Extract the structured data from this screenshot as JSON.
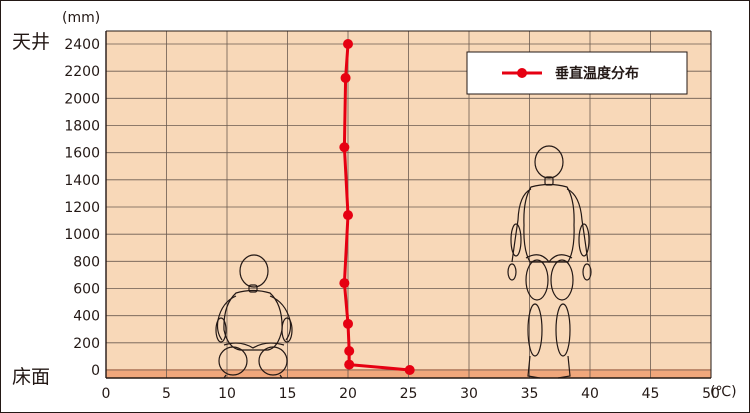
{
  "chart_data": {
    "type": "line",
    "y_unit": "(mm)",
    "x_unit": "(℃)",
    "ceiling_label": "天井",
    "floor_label": "床面",
    "xlim": [
      0,
      50
    ],
    "ylim": [
      0,
      2400
    ],
    "x_ticks": [
      0,
      5,
      10,
      15,
      20,
      25,
      30,
      35,
      40,
      45,
      50
    ],
    "y_ticks": [
      0,
      200,
      400,
      600,
      800,
      1000,
      1200,
      1400,
      1600,
      1800,
      2000,
      2200,
      2400
    ],
    "grid": true,
    "legend_position": "top-right",
    "series": [
      {
        "name": "垂直温度分布",
        "color": "#e60012",
        "points": [
          {
            "x": 20.0,
            "y": 2400
          },
          {
            "x": 19.8,
            "y": 2150
          },
          {
            "x": 19.7,
            "y": 1640
          },
          {
            "x": 20.0,
            "y": 1140
          },
          {
            "x": 19.7,
            "y": 640
          },
          {
            "x": 20.0,
            "y": 340
          },
          {
            "x": 20.1,
            "y": 140
          },
          {
            "x": 20.1,
            "y": 40
          },
          {
            "x": 25.1,
            "y": 0
          }
        ]
      }
    ],
    "background_color": "#f8d8b8",
    "floor_band_color": "#f0a77c"
  }
}
